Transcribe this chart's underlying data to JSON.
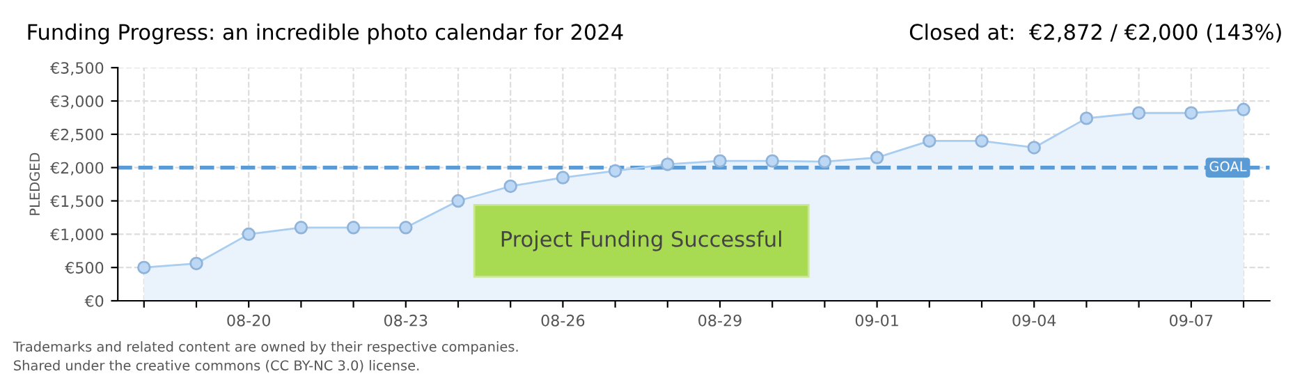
{
  "chart_data": {
    "type": "area",
    "title": "Funding Progress: an incredible photo calendar for 2024",
    "subtitle": "Closed at:  €2,872 / €2,000 (143%)",
    "ylabel": "PLEDGED",
    "categories": [
      null,
      null,
      "08-20",
      null,
      null,
      "08-23",
      null,
      null,
      "08-26",
      null,
      null,
      "08-29",
      null,
      null,
      "09-01",
      null,
      null,
      "09-04",
      null,
      null,
      "09-07",
      null
    ],
    "series": [
      {
        "color": "#eaf2fb",
        "values": [
          500,
          560,
          1000,
          1100,
          1100,
          1100,
          1500,
          1720,
          1850,
          1950,
          2050,
          2100,
          2100,
          2090,
          2150,
          2400,
          2400,
          2300,
          2740,
          2820,
          2820,
          2872
        ]
      }
    ],
    "ylim": [
      0,
      3500
    ],
    "yticks": [
      {
        "value": 0,
        "label": "€0"
      },
      {
        "value": 500,
        "label": "€500"
      },
      {
        "value": 1000,
        "label": "€1,000"
      },
      {
        "value": 1500,
        "label": "€1,500"
      },
      {
        "value": 2000,
        "label": "€2,000"
      },
      {
        "value": 2500,
        "label": "€2,500"
      },
      {
        "value": 3000,
        "label": "€3,000"
      },
      {
        "value": 3500,
        "label": "€3,500"
      }
    ],
    "ref_lines": [
      {
        "axis": "y",
        "value": 2000,
        "label": "GOAL",
        "color": "#5b9bd5",
        "line_style": "dashed"
      }
    ],
    "grid": true,
    "marker": "circle",
    "legend": false,
    "annotations": [
      "Project Funding Successful",
      "Trademarks and related content are owned by their respective companies.",
      "Shared under the creative commons (CC BY-NC 3.0) license."
    ]
  }
}
